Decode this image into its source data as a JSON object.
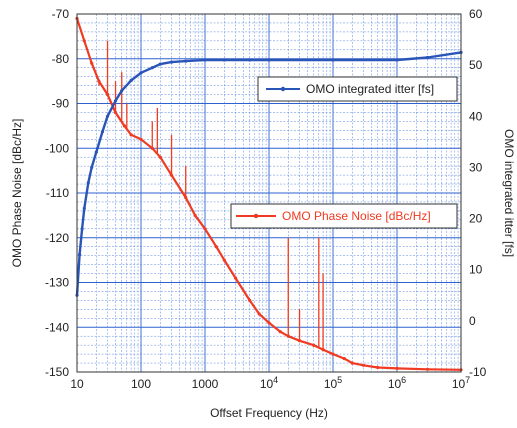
{
  "chart_data": {
    "type": "line",
    "title": "",
    "xlabel": "Offset Frequency (Hz)",
    "ylabel_left": "OMO Phase Noise [dBc/Hz]",
    "ylabel_right": "OMO integrated itter [fs]",
    "x_scale": "log",
    "xlim": [
      10,
      10000000
    ],
    "ylim_left": [
      -150,
      -70
    ],
    "ylim_right": [
      -10,
      60
    ],
    "x_ticks": [
      {
        "value": 10,
        "label": "10",
        "sup": ""
      },
      {
        "value": 100,
        "label": "100",
        "sup": ""
      },
      {
        "value": 1000,
        "label": "1000",
        "sup": ""
      },
      {
        "value": 10000,
        "label": "10",
        "sup": "4"
      },
      {
        "value": 100000,
        "label": "10",
        "sup": "5"
      },
      {
        "value": 1000000,
        "label": "10",
        "sup": "6"
      },
      {
        "value": 10000000,
        "label": "10",
        "sup": "7"
      }
    ],
    "y_left_ticks": [
      {
        "value": -70,
        "label": "-70"
      },
      {
        "value": -80,
        "label": "-80"
      },
      {
        "value": -90,
        "label": "-90"
      },
      {
        "value": -100,
        "label": "-100"
      },
      {
        "value": -110,
        "label": "-110"
      },
      {
        "value": -120,
        "label": "-120"
      },
      {
        "value": -130,
        "label": "-130"
      },
      {
        "value": -140,
        "label": "-140"
      },
      {
        "value": -150,
        "label": "-150"
      }
    ],
    "y_right_ticks": [
      {
        "value": 60,
        "label": "60"
      },
      {
        "value": 50,
        "label": "50"
      },
      {
        "value": 40,
        "label": "40"
      },
      {
        "value": 30,
        "label": "30"
      },
      {
        "value": 20,
        "label": "20"
      },
      {
        "value": 10,
        "label": "10"
      },
      {
        "value": 0,
        "label": "0"
      },
      {
        "value": -10,
        "label": "-10"
      }
    ],
    "grid": true,
    "series": [
      {
        "name": "OMO Phase Noise [dBc/Hz]",
        "axis": "left",
        "color": "#f03a22",
        "x": [
          10,
          13,
          17,
          22,
          30,
          40,
          55,
          70,
          100,
          150,
          200,
          300,
          500,
          700,
          1000,
          1500,
          2000,
          3000,
          5000,
          7000,
          10000,
          15000,
          20000,
          30000,
          50000,
          70000,
          100000,
          150000,
          200000,
          300000,
          500000,
          1000000,
          3000000,
          10000000
        ],
        "y": [
          -71,
          -76,
          -81,
          -85,
          -88,
          -92,
          -95,
          -97,
          -98,
          -100,
          -102,
          -106,
          -111,
          -115,
          -118,
          -122,
          -125,
          -129,
          -134,
          -137,
          -139,
          -141,
          -142,
          -143,
          -144,
          -145,
          -146,
          -147,
          -148,
          -148.5,
          -149,
          -149.2,
          -149.4,
          -149.5
        ]
      },
      {
        "name": "OMO integrated itter [fs]",
        "axis": "right",
        "color": "#2a55b8",
        "x": [
          10,
          11,
          12,
          13,
          15,
          17,
          20,
          25,
          30,
          40,
          50,
          70,
          100,
          150,
          200,
          300,
          500,
          1000,
          2000,
          5000,
          10000,
          100000,
          1000000,
          3000000,
          10000000
        ],
        "y": [
          5,
          13,
          18,
          22,
          27,
          30,
          33,
          37,
          40,
          43,
          45,
          47,
          48.5,
          49.5,
          50.2,
          50.6,
          50.8,
          51,
          51,
          51,
          51,
          51,
          51,
          51.5,
          52.5
        ]
      }
    ],
    "spurs": [
      {
        "x": 22,
        "peak": -86
      },
      {
        "x": 30,
        "peak": -76
      },
      {
        "x": 40,
        "peak": -85
      },
      {
        "x": 50,
        "peak": -83
      },
      {
        "x": 60,
        "peak": -90
      },
      {
        "x": 150,
        "peak": -94
      },
      {
        "x": 180,
        "peak": -91
      },
      {
        "x": 300,
        "peak": -97
      },
      {
        "x": 500,
        "peak": -104
      },
      {
        "x": 20000,
        "peak": -120
      },
      {
        "x": 30000,
        "peak": -136
      },
      {
        "x": 60000,
        "peak": -120
      },
      {
        "x": 70000,
        "peak": -128
      }
    ],
    "legend": [
      {
        "series": "OMO integrated itter [fs]",
        "position": "upper-right"
      },
      {
        "series": "OMO Phase Noise [dBc/Hz]",
        "position": "middle-right"
      }
    ]
  }
}
